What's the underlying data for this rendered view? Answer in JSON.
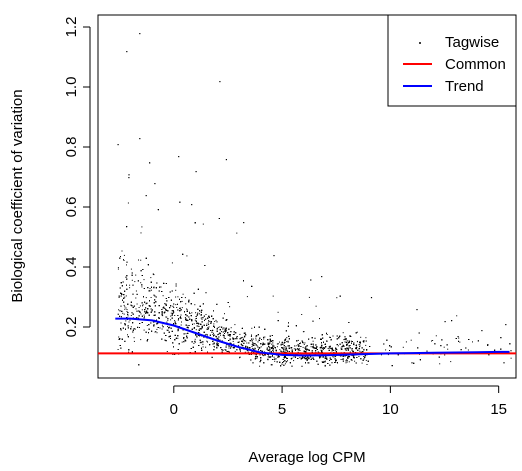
{
  "chart_data": {
    "type": "scatter",
    "xlabel": "Average log CPM",
    "ylabel": "Biological coefficient of variation",
    "xlim": [
      -3.5,
      15.8
    ],
    "ylim": [
      0.03,
      1.24
    ],
    "x_ticks": [
      0,
      5,
      10,
      15
    ],
    "x_tick_labels": [
      "0",
      "5",
      "10",
      "15"
    ],
    "y_ticks": [
      0.2,
      0.4,
      0.6,
      0.8,
      1.0,
      1.2
    ],
    "y_tick_labels": [
      "0.2",
      "0.4",
      "0.6",
      "0.8",
      "1.0",
      "1.2"
    ],
    "grid": false,
    "legend_position": "top-right",
    "colors": {
      "tagwise": "#000000",
      "common": "#ff0000",
      "trend": "#0000ff"
    },
    "series": [
      {
        "name": "Tagwise",
        "kind": "points",
        "x_range": [
          -2.8,
          15.6
        ],
        "y_range": [
          0.07,
          1.18
        ],
        "approx_point_count": 5000,
        "outliers": [
          {
            "x": -2.2,
            "y": 1.12
          },
          {
            "x": -1.6,
            "y": 1.18
          },
          {
            "x": 2.1,
            "y": 1.02
          },
          {
            "x": -2.6,
            "y": 0.81
          },
          {
            "x": -1.6,
            "y": 0.83
          },
          {
            "x": 0.2,
            "y": 0.77
          },
          {
            "x": 1.0,
            "y": 0.72
          },
          {
            "x": 2.4,
            "y": 0.76
          },
          {
            "x": -2.1,
            "y": 0.7
          },
          {
            "x": -0.9,
            "y": 0.68
          },
          {
            "x": -1.3,
            "y": 0.64
          },
          {
            "x": 0.8,
            "y": 0.61
          },
          {
            "x": 3.2,
            "y": 0.55
          },
          {
            "x": 4.6,
            "y": 0.44
          },
          {
            "x": 6.8,
            "y": 0.37
          },
          {
            "x": 9.1,
            "y": 0.3
          },
          {
            "x": 11.2,
            "y": 0.26
          },
          {
            "x": 12.5,
            "y": 0.22
          },
          {
            "x": 15.3,
            "y": 0.21
          },
          {
            "x": 14.2,
            "y": 0.19
          },
          {
            "x": 13.1,
            "y": 0.17
          }
        ]
      },
      {
        "name": "Common",
        "kind": "hline",
        "y": 0.112
      },
      {
        "name": "Trend",
        "kind": "line",
        "x": [
          -2.7,
          -2.0,
          -1.0,
          0.0,
          1.0,
          2.0,
          3.0,
          4.0,
          5.0,
          6.0,
          7.0,
          8.0,
          9.0,
          10.0,
          11.0,
          12.0,
          13.0,
          14.0,
          15.0,
          15.5
        ],
        "y": [
          0.228,
          0.228,
          0.222,
          0.205,
          0.18,
          0.155,
          0.133,
          0.115,
          0.107,
          0.105,
          0.106,
          0.108,
          0.11,
          0.112,
          0.113,
          0.114,
          0.115,
          0.116,
          0.117,
          0.117
        ]
      }
    ]
  }
}
